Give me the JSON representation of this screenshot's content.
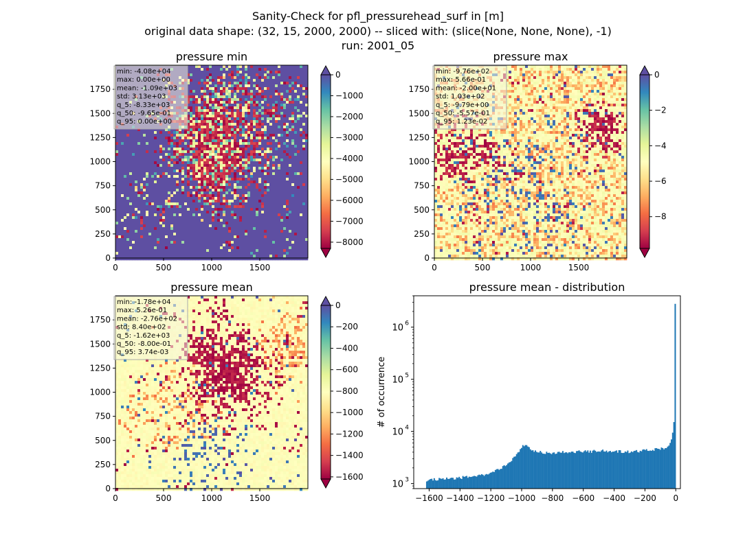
{
  "suptitle": {
    "line1": "Sanity-Check for pfl_pressurehead_surf in [m]",
    "line2": "original data shape: (32, 15, 2000, 2000) -- sliced with: (slice(None, None, None), -1)",
    "line3": "run: 2001_05"
  },
  "chart_data": [
    {
      "type": "heatmap",
      "title": "pressure min",
      "colormap": "Spectral",
      "x_ticks": [
        "0",
        "500",
        "1000",
        "1500"
      ],
      "y_ticks": [
        "0",
        "250",
        "500",
        "750",
        "1000",
        "1250",
        "1500",
        "1750"
      ],
      "xlim": [
        0,
        2000
      ],
      "ylim": [
        0,
        2000
      ],
      "colorbar_ticks": [
        "0",
        "−1000",
        "−2000",
        "−3000",
        "−4000",
        "−5000",
        "−6000",
        "−7000",
        "−8000"
      ],
      "colorbar_range": [
        -8300,
        0
      ],
      "stats": [
        "min: -4.08e+04",
        "max: 0.00e+00",
        "mean: -1.09e+03",
        "std: 3.13e+03",
        "q_5: -8.33e+03",
        "q_50: -9.65e-01",
        "q_95: 0.00e+00"
      ]
    },
    {
      "type": "heatmap",
      "title": "pressure max",
      "colormap": "Spectral",
      "x_ticks": [
        "0",
        "500",
        "1000",
        "1500"
      ],
      "y_ticks": [
        "0",
        "250",
        "500",
        "750",
        "1000",
        "1250",
        "1500",
        "1750"
      ],
      "xlim": [
        0,
        2000
      ],
      "ylim": [
        0,
        2000
      ],
      "colorbar_ticks": [
        "0",
        "−2",
        "−4",
        "−6",
        "−8"
      ],
      "colorbar_range": [
        -9.79,
        0
      ],
      "stats": [
        "min: -9.76e+02",
        "max: 5.66e-01",
        "mean: -2.00e+01",
        "std: 1.03e+02",
        "q_5: -9.79e+00",
        "q_50: -5.57e-01",
        "q_95: 1.23e-02"
      ]
    },
    {
      "type": "heatmap",
      "title": "pressure mean",
      "colormap": "Spectral",
      "x_ticks": [
        "0",
        "500",
        "1000",
        "1500"
      ],
      "y_ticks": [
        "0",
        "250",
        "500",
        "750",
        "1000",
        "1250",
        "1500",
        "1750"
      ],
      "xlim": [
        0,
        2000
      ],
      "ylim": [
        0,
        2000
      ],
      "colorbar_ticks": [
        "0",
        "−200",
        "−400",
        "−600",
        "−800",
        "−1000",
        "−1200",
        "−1400",
        "−1600"
      ],
      "colorbar_range": [
        -1620,
        0
      ],
      "stats": [
        "min: -1.78e+04",
        "max: 5.26e-01",
        "mean: -2.76e+02",
        "std: 8.40e+02",
        "q_5: -1.62e+03",
        "q_50: -8.00e-01",
        "q_95: 3.74e-03"
      ]
    },
    {
      "type": "bar",
      "title": "pressure mean - distribution",
      "ylabel": "# of occurrence",
      "yscale": "log",
      "bar_color": "#1f77b4",
      "xlim": [
        -1700,
        30
      ],
      "ylim": [
        800,
        4000000
      ],
      "x_ticks": [
        "−1600",
        "−1400",
        "−1200",
        "−1000",
        "−800",
        "−600",
        "−400",
        "−200",
        "0"
      ],
      "y_ticks": [
        "10",
        "10",
        "10",
        "10"
      ],
      "y_tick_exponents": [
        "3",
        "4",
        "5",
        "6"
      ],
      "bin_range": [
        -1620,
        0
      ],
      "n_bins": 200,
      "profile": [
        {
          "x": -1620,
          "y": 1150
        },
        {
          "x": -1500,
          "y": 1250
        },
        {
          "x": -1400,
          "y": 1300
        },
        {
          "x": -1300,
          "y": 1380
        },
        {
          "x": -1250,
          "y": 1450
        },
        {
          "x": -1200,
          "y": 1600
        },
        {
          "x": -1150,
          "y": 1850
        },
        {
          "x": -1100,
          "y": 2300
        },
        {
          "x": -1050,
          "y": 3200
        },
        {
          "x": -1000,
          "y": 4800
        },
        {
          "x": -980,
          "y": 5800
        },
        {
          "x": -960,
          "y": 4900
        },
        {
          "x": -920,
          "y": 4200
        },
        {
          "x": -880,
          "y": 4000
        },
        {
          "x": -800,
          "y": 3900
        },
        {
          "x": -700,
          "y": 4000
        },
        {
          "x": -600,
          "y": 4100
        },
        {
          "x": -500,
          "y": 4200
        },
        {
          "x": -400,
          "y": 4200
        },
        {
          "x": -300,
          "y": 4000
        },
        {
          "x": -200,
          "y": 4300
        },
        {
          "x": -100,
          "y": 4600
        },
        {
          "x": -60,
          "y": 5000
        },
        {
          "x": -40,
          "y": 6000
        },
        {
          "x": -25,
          "y": 8000
        },
        {
          "x": -15,
          "y": 12000
        },
        {
          "x": -10,
          "y": 18000
        },
        {
          "x": -8,
          "y": 2800000
        },
        {
          "x": 0,
          "y": 2800000
        }
      ]
    }
  ]
}
